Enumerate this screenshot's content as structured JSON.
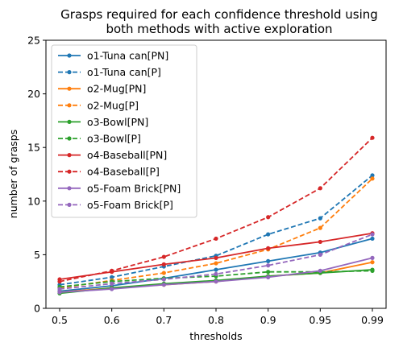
{
  "chart_data": {
    "type": "line",
    "title": "Grasps required for each confidence threshold using both methods with active exploration",
    "title_lines": [
      "Grasps required for each confidence threshold using",
      "both methods with active exploration"
    ],
    "xlabel": "thresholds",
    "ylabel": "number of grasps",
    "x": [
      "0.5",
      "0.6",
      "0.7",
      "0.8",
      "0.9",
      "0.95",
      "0.99"
    ],
    "ylim": [
      0,
      25
    ],
    "yticks": [
      "0",
      "5",
      "10",
      "15",
      "20",
      "25"
    ],
    "legend_position": "upper-left",
    "series": [
      {
        "name": "o1-Tuna can[PN]",
        "color": "#1f77b4",
        "dashed": false,
        "values": [
          1.6,
          2.1,
          2.8,
          3.6,
          4.4,
          5.2,
          6.5
        ]
      },
      {
        "name": "o1-Tuna can[P]",
        "color": "#1f77b4",
        "dashed": true,
        "values": [
          2.2,
          2.9,
          3.9,
          4.9,
          6.9,
          8.4,
          12.4
        ]
      },
      {
        "name": "o2-Mug[PN]",
        "color": "#ff7f0e",
        "dashed": false,
        "values": [
          1.5,
          1.9,
          2.2,
          2.5,
          3.0,
          3.3,
          4.3
        ]
      },
      {
        "name": "o2-Mug[P]",
        "color": "#ff7f0e",
        "dashed": true,
        "values": [
          1.9,
          2.6,
          3.3,
          4.2,
          5.5,
          7.5,
          12.1
        ]
      },
      {
        "name": "o3-Bowl[PN]",
        "color": "#2ca02c",
        "dashed": false,
        "values": [
          1.4,
          1.9,
          2.3,
          2.6,
          3.0,
          3.3,
          3.6
        ]
      },
      {
        "name": "o3-Bowl[P]",
        "color": "#2ca02c",
        "dashed": true,
        "values": [
          2.0,
          2.5,
          2.8,
          3.0,
          3.4,
          3.4,
          3.5
        ]
      },
      {
        "name": "o4-Baseball[PN]",
        "color": "#d62728",
        "dashed": false,
        "values": [
          2.7,
          3.4,
          4.1,
          4.7,
          5.6,
          6.2,
          7.0
        ]
      },
      {
        "name": "o4-Baseball[P]",
        "color": "#d62728",
        "dashed": true,
        "values": [
          2.5,
          3.5,
          4.8,
          6.5,
          8.5,
          11.2,
          15.9
        ]
      },
      {
        "name": "o5-Foam Brick[PN]",
        "color": "#9467bd",
        "dashed": false,
        "values": [
          1.5,
          1.8,
          2.2,
          2.5,
          2.9,
          3.5,
          4.7
        ]
      },
      {
        "name": "o5-Foam Brick[P]",
        "color": "#9467bd",
        "dashed": true,
        "values": [
          1.8,
          2.3,
          2.7,
          3.2,
          4.0,
          5.0,
          6.9
        ]
      }
    ]
  }
}
